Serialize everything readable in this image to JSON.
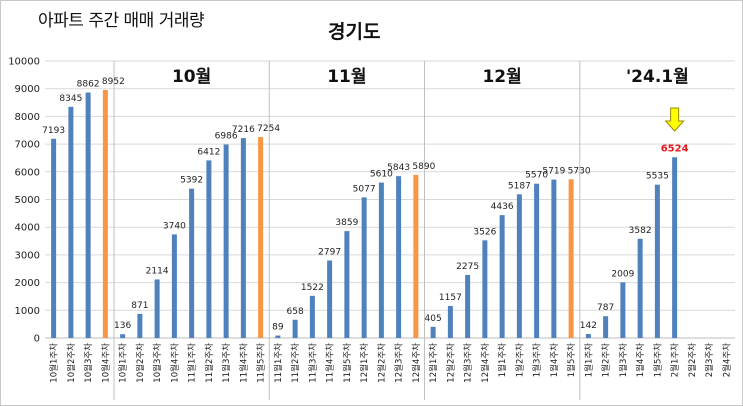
{
  "page_title": "아파트 주간 매매 거래량",
  "chart_data": {
    "type": "bar",
    "title": "경기도",
    "ylim": [
      0,
      10000
    ],
    "yticks": [
      0,
      1000,
      2000,
      3000,
      4000,
      5000,
      6000,
      7000,
      8000,
      9000,
      10000
    ],
    "grid": true,
    "groups": [
      "10월",
      "11월",
      "12월",
      "'24.1월"
    ],
    "categories": [
      "10월1주차",
      "10월2주차",
      "10월3주차",
      "10월4주차",
      "10월1주차",
      "10월2주차",
      "10월3주차",
      "10월4주차",
      "11월1주차",
      "11월2주차",
      "11월3주차",
      "11월4주차",
      "11월5주차",
      "11월1주차",
      "11월2주차",
      "11월3주차",
      "11월4주차",
      "11월5주차",
      "12월1주차",
      "12월2주차",
      "12월3주차",
      "12월4주차",
      "12월1주차",
      "12월2주차",
      "12월3주차",
      "12월4주차",
      "1월1주차",
      "1월2주차",
      "1월3주차",
      "1월4주차",
      "1월5주차",
      "1월1주차",
      "1월2주차",
      "1월3주차",
      "1월4주차",
      "1월5주차",
      "2월1주차",
      "2월2주차",
      "2월3주차",
      "2월4주차"
    ],
    "values": [
      7193,
      8345,
      8862,
      8952,
      136,
      871,
      2114,
      3740,
      5392,
      6412,
      6986,
      7216,
      7254,
      89,
      658,
      1522,
      2797,
      3859,
      5077,
      5610,
      5843,
      5890,
      405,
      1157,
      2275,
      3526,
      4436,
      5187,
      5570,
      5719,
      5730,
      142,
      787,
      2009,
      3582,
      5535,
      6524,
      null,
      null,
      null
    ],
    "final_week_indices": [
      3,
      12,
      21,
      30
    ],
    "highlight": {
      "index": 36,
      "value": 6524,
      "color": "#e8171b"
    },
    "colors": {
      "bar": "#4f81bd",
      "final_bar": "#f79646",
      "arrow": "#ffff00",
      "arrow_stroke": "#9a8a00",
      "grid": "#d9d9d9"
    }
  }
}
